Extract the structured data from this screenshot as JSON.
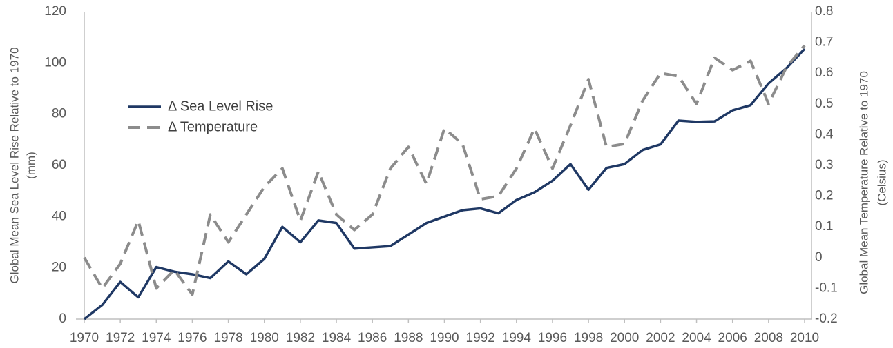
{
  "chart_data": {
    "type": "line",
    "ylabel": [
      "Global Mean Sea Level Rise Relative to 1970",
      "(mm)"
    ],
    "y2label": [
      "Global Mean Temperature Relative to 1970",
      "(Celsius)"
    ],
    "x": [
      1970,
      1971,
      1972,
      1973,
      1974,
      1975,
      1976,
      1977,
      1978,
      1979,
      1980,
      1981,
      1982,
      1983,
      1984,
      1985,
      1986,
      1987,
      1988,
      1989,
      1990,
      1991,
      1992,
      1993,
      1994,
      1995,
      1996,
      1997,
      1998,
      1999,
      2000,
      2001,
      2002,
      2003,
      2004,
      2005,
      2006,
      2007,
      2008,
      2009,
      2010
    ],
    "xlim": [
      1970,
      2010
    ],
    "xticks": [
      1970,
      1972,
      1974,
      1976,
      1978,
      1980,
      1982,
      1984,
      1986,
      1988,
      1990,
      1992,
      1994,
      1996,
      1998,
      2000,
      2002,
      2004,
      2006,
      2008,
      2010
    ],
    "ylim": [
      0,
      120
    ],
    "yticks": [
      0,
      20,
      40,
      60,
      80,
      100,
      120
    ],
    "y2lim": [
      -0.2,
      0.8
    ],
    "y2ticks": [
      -0.2,
      -0.1,
      0,
      0.1,
      0.2,
      0.3,
      0.4,
      0.5,
      0.6,
      0.7,
      0.8
    ],
    "legend": "upper left",
    "series": [
      {
        "name": "Δ Sea Level Rise",
        "color": "#1f3864",
        "dash": false,
        "axis": "y",
        "values": [
          0,
          5.5,
          14.5,
          8.5,
          20.3,
          18.5,
          17.5,
          16,
          22.5,
          17.5,
          23.5,
          36,
          30,
          38.5,
          37.5,
          27.5,
          28,
          28.5,
          33,
          37.5,
          40,
          42.5,
          43.2,
          41.3,
          46.5,
          49.5,
          54,
          60.5,
          50.5,
          59,
          60.5,
          66,
          68.2,
          77.5,
          77,
          77.2,
          81.5,
          83.5,
          92,
          98,
          105.5
        ]
      },
      {
        "name": "Δ Temperature",
        "color": "#8c8c8c",
        "dash": true,
        "axis": "y2",
        "values": [
          0,
          -0.1,
          -0.02,
          0.12,
          -0.1,
          -0.04,
          -0.12,
          0.14,
          0.05,
          0.14,
          0.23,
          0.29,
          0.12,
          0.28,
          0.14,
          0.09,
          0.14,
          0.29,
          0.36,
          0.24,
          0.42,
          0.37,
          0.19,
          0.2,
          0.29,
          0.42,
          0.29,
          0.43,
          0.58,
          0.36,
          0.37,
          0.51,
          0.6,
          0.59,
          0.5,
          0.65,
          0.61,
          0.64,
          0.5,
          0.62,
          0.69
        ]
      }
    ]
  }
}
